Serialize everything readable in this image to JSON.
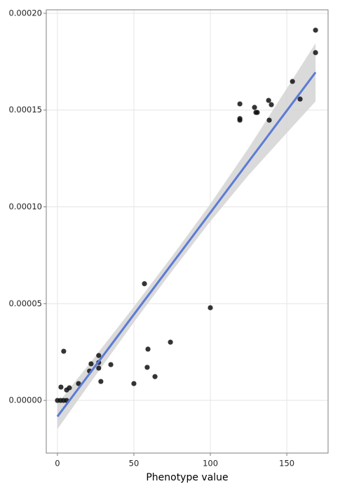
{
  "chart_data": {
    "type": "scatter",
    "x_label": "Phenotype value",
    "xlim": [
      -7.3,
      177
    ],
    "ylim": [
      -2.72e-05,
      0.0002018
    ],
    "xticks": [
      0,
      50,
      100,
      150
    ],
    "yticks": [
      {
        "value": 0,
        "label": "0.00000"
      },
      {
        "value": 5e-05,
        "label": "0.00005"
      },
      {
        "value": 0.0001,
        "label": "0.00010"
      },
      {
        "value": 0.00015,
        "label": "0.00015"
      },
      {
        "value": 0.0002,
        "label": "0.00020"
      }
    ],
    "grid": true,
    "color": "#111111",
    "x": [
      0,
      2,
      4,
      6,
      2.3,
      4.1,
      6,
      7.8,
      13.8,
      21,
      22,
      27,
      27,
      27,
      28.4,
      34.9,
      50,
      56.9,
      59.2,
      58.7,
      63.8,
      73.9,
      100,
      119.3,
      119.3,
      119.3,
      128.9,
      129.8,
      130.7,
      138.1,
      139.9,
      138.5,
      153.7,
      158.7,
      168.8,
      168.8
    ],
    "values": [
      0,
      0,
      0,
      0,
      6.9e-06,
      2.54e-05,
      5.4e-06,
      6.5e-06,
      8.7e-06,
      1.52e-05,
      1.89e-05,
      2.32e-05,
      1.96e-05,
      1.67e-05,
      9.8e-06,
      1.85e-05,
      8.7e-06,
      6.03e-05,
      2.65e-05,
      1.71e-05,
      1.23e-05,
      3.01e-05,
      4.79e-05,
      0.0001532,
      0.0001456,
      0.0001448,
      0.0001514,
      0.0001488,
      0.0001488,
      0.000155,
      0.0001528,
      0.0001448,
      0.0001648,
      0.0001557,
      0.0001913,
      0.0001797
    ],
    "fit": {
      "color": "#5b7bd5",
      "band_color": "#d4d4d4",
      "x": [
        0,
        25,
        50,
        75,
        100,
        125,
        150,
        168.8
      ],
      "values": [
        -8.3e-06,
        1.8e-05,
        4.44e-05,
        7.07e-05,
        9.7e-05,
        0.0001234,
        0.0001497,
        0.0001695
      ],
      "lower": [
        -1.48e-05,
        1.3e-05,
        4.04e-05,
        6.69e-05,
        9.25e-05,
        0.0001164,
        0.0001382,
        0.0001545
      ],
      "upper": [
        -1.8e-06,
        2.3e-05,
        4.84e-05,
        7.45e-05,
        0.0001015,
        0.0001304,
        0.0001612,
        0.0001845
      ]
    }
  }
}
